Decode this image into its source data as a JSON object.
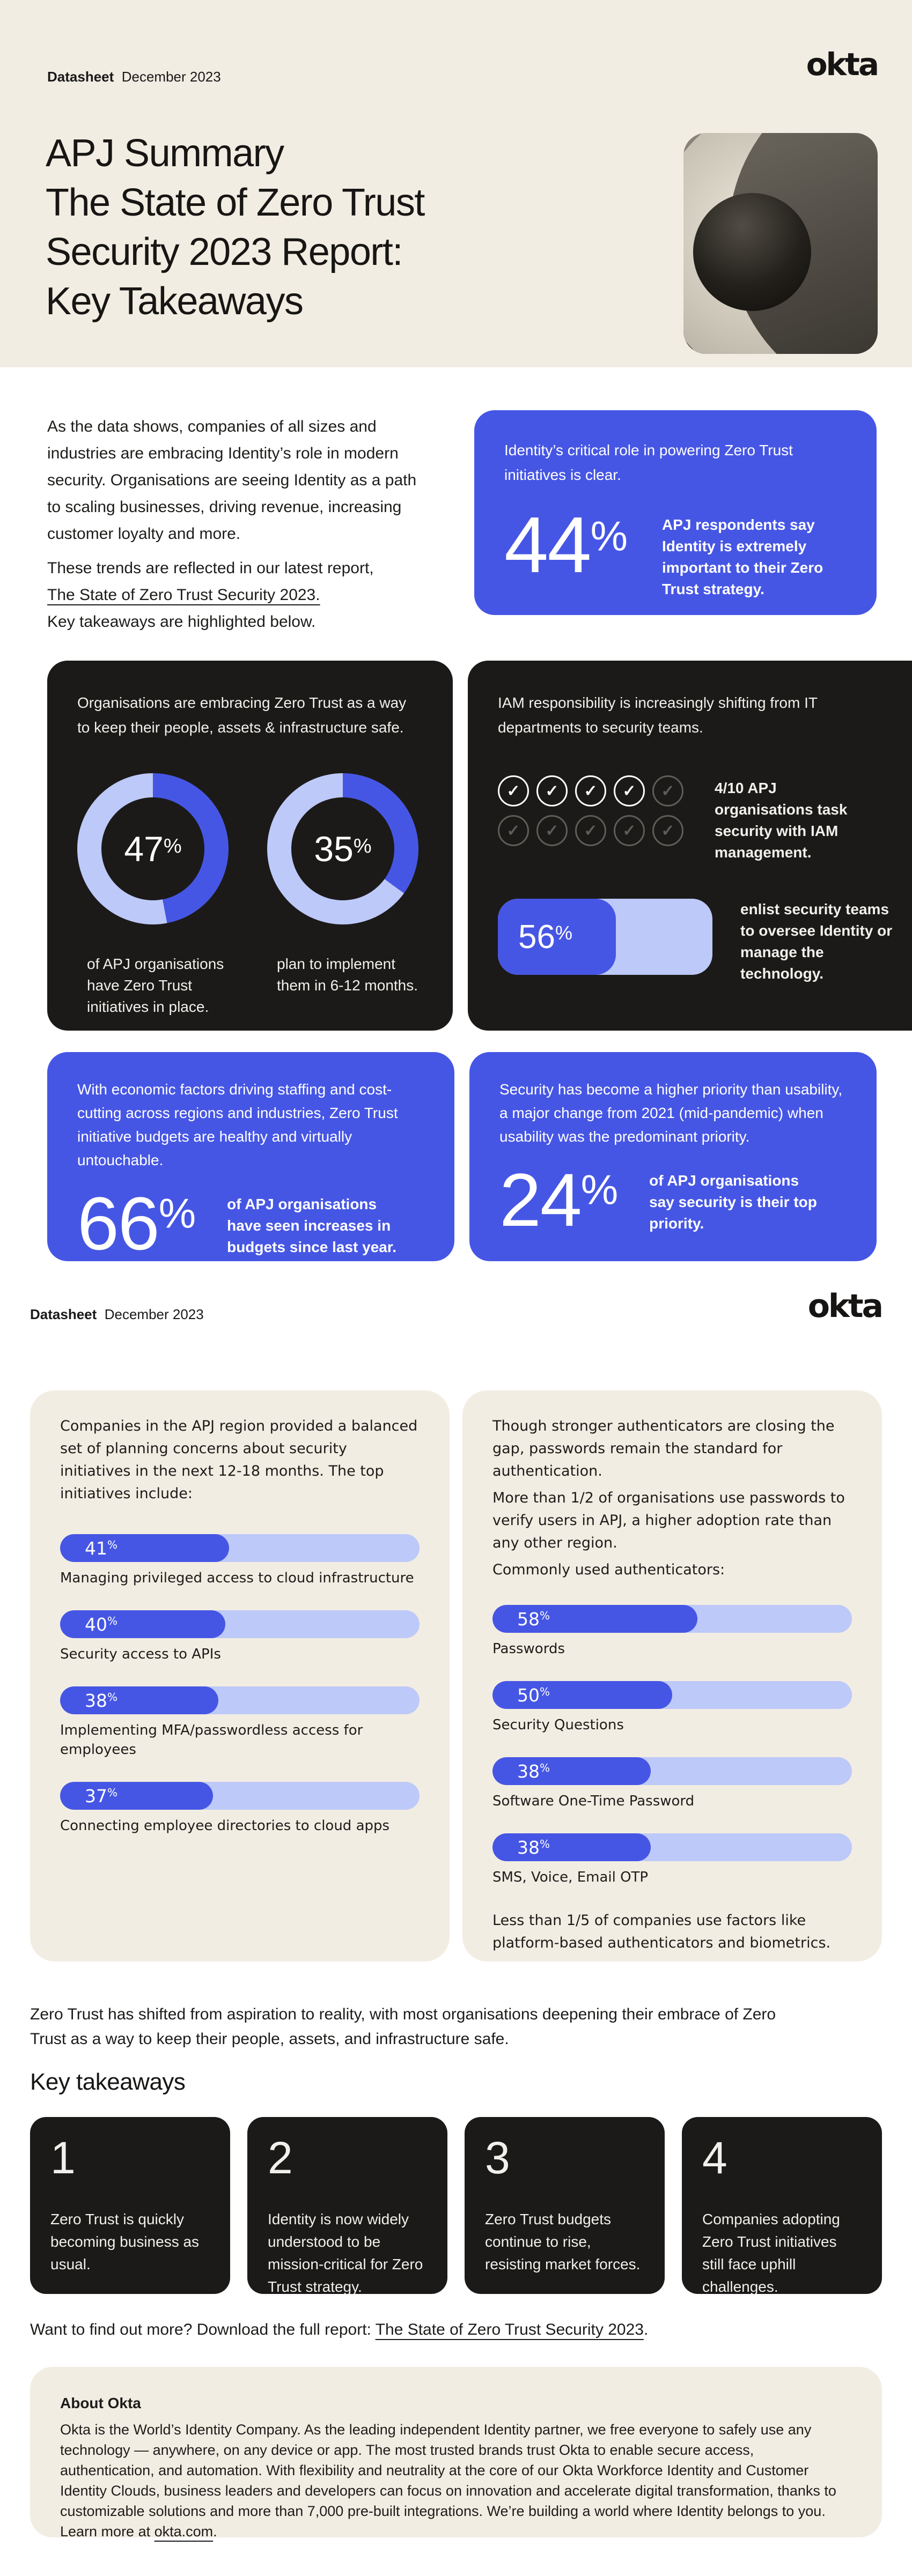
{
  "brand": {
    "logo_text": "okta"
  },
  "colors": {
    "cream": "#F2EDE2",
    "blue": "#4656E4",
    "blue_light": "#BDC9F9",
    "dark": "#1B1A18",
    "ink": "#191919"
  },
  "header": {
    "label": "Datasheet",
    "date": "December 2023"
  },
  "page1": {
    "title_lines": [
      "APJ Summary",
      "The State of Zero Trust",
      "Security 2023 Report:",
      "Key Takeaways"
    ],
    "intro": {
      "p1": "As the data shows, companies of all sizes and industries are embracing Identity’s role in modern security. Organisations are seeing Identity as a path to scaling businesses, driving revenue, increasing customer loyalty and more.",
      "p2_line1": "These trends are reflected in our latest report,",
      "p2_link": "The State of Zero Trust Security 2023.",
      "p3": "Key takeaways are highlighted below."
    },
    "stat44": {
      "lead": "Identity’s critical role in powering Zero Trust initiatives is clear.",
      "value": "44",
      "unit": "%",
      "caption": "APJ respondents say Identity is extremely important to their Zero Trust strategy."
    },
    "zt_box": {
      "lead": "Organisations are embracing Zero Trust as a way to keep their people, assets & infrastructure safe.",
      "donut1": {
        "value": 47,
        "display": "47",
        "unit": "%",
        "caption": "of APJ organisations have Zero Trust initiatives in place."
      },
      "donut2": {
        "value": 35,
        "display": "35",
        "unit": "%",
        "caption": "plan to implement them in 6-12 months."
      }
    },
    "iam_box": {
      "lead": "IAM responsibility is increasingly shifting from IT departments to security teams.",
      "checks": {
        "filled": 4,
        "total": 10,
        "caption": "4/10 APJ organisations task security with IAM management."
      },
      "bar": {
        "value": "56",
        "unit": "%",
        "fill_pct": 55,
        "caption": "enlist security teams to oversee Identity or manage the technology."
      }
    },
    "budget_box": {
      "lead": "With economic factors driving staffing and cost-cutting across regions and industries, Zero Trust initiative budgets are healthy and virtually untouchable.",
      "value": "66",
      "unit": "%",
      "caption": "of APJ organisations have seen increases in budgets since last year."
    },
    "priority_box": {
      "lead": "Security has become a higher priority than usability, a major change from 2021 (mid-pandemic) when usability was the predominant priority.",
      "value": "24",
      "unit": "%",
      "caption": "of APJ organisations say security is their top priority."
    }
  },
  "page2": {
    "initiatives_box": {
      "intro": "Companies in the APJ region provided a balanced set of planning concerns about security initiatives in the next 12-18 months. The top initiatives include:",
      "bars": [
        {
          "value": "41",
          "unit": "%",
          "fill_pct": 47,
          "caption": "Managing privileged access to cloud infrastructure"
        },
        {
          "value": "40",
          "unit": "%",
          "fill_pct": 46,
          "caption": "Security access to APIs"
        },
        {
          "value": "38",
          "unit": "%",
          "fill_pct": 44,
          "caption": "Implementing MFA/passwordless access for employees"
        },
        {
          "value": "37",
          "unit": "%",
          "fill_pct": 42.5,
          "caption": "Connecting employee directories to cloud apps"
        }
      ]
    },
    "auth_box": {
      "p1": "Though stronger authenticators are closing the gap, passwords remain the standard for authentication.",
      "p2": "More than 1/2 of organisations use passwords to verify users in APJ, a higher adoption rate than any other region.",
      "p3": "Commonly used authenticators:",
      "bars": [
        {
          "value": "58",
          "unit": "%",
          "fill_pct": 57,
          "caption": "Passwords"
        },
        {
          "value": "50",
          "unit": "%",
          "fill_pct": 50,
          "caption": "Security Questions"
        },
        {
          "value": "38",
          "unit": "%",
          "fill_pct": 44,
          "caption": "Software One-Time Password"
        },
        {
          "value": "38",
          "unit": "%",
          "fill_pct": 44,
          "caption": "SMS, Voice, Email OTP"
        }
      ],
      "footnote": "Less than 1/5 of companies use factors like platform-based authenticators and biometrics."
    },
    "summary": "Zero Trust has shifted from aspiration to reality, with most organisations deepening their embrace of Zero Trust as a way to keep their people, assets, and infrastructure safe.",
    "takeaways_title": "Key takeaways",
    "takeaways": [
      {
        "number": "1",
        "text": "Zero Trust is quickly becoming business as usual."
      },
      {
        "number": "2",
        "text": "Identity is now widely understood to be mission-critical for Zero Trust strategy."
      },
      {
        "number": "3",
        "text": "Zero Trust budgets continue to rise, resisting market forces."
      },
      {
        "number": "4",
        "text": "Companies adopting Zero Trust initiatives still face uphill challenges."
      }
    ],
    "more": {
      "before": "Want to find out more? Download the full report: ",
      "link": "The State of Zero Trust Security 2023",
      "after": "."
    },
    "about": {
      "title": "About Okta",
      "before": "Okta is the World’s Identity Company. As the leading independent Identity partner, we free everyone to safely use any technology — anywhere, on any device or app. The most trusted brands trust Okta to enable secure access, authentication, and automation. With flexibility and neutrality at the core of our Okta Workforce Identity and Customer Identity Clouds, business leaders and developers can focus on innovation and accelerate digital transformation, thanks to customizable solutions and more than 7,000 pre-built integrations. We’re building a world where Identity belongs to you. Learn more at ",
      "link": "okta.com",
      "after": "."
    }
  },
  "chart_data": [
    {
      "type": "pie",
      "title": "APJ organisations with Zero Trust initiatives in place",
      "categories": [
        "Have Zero Trust initiatives in place",
        "Other"
      ],
      "values": [
        47,
        53
      ]
    },
    {
      "type": "pie",
      "title": "APJ organisations planning to implement Zero Trust in 6-12 months",
      "categories": [
        "Plan to implement in 6-12 months",
        "Other"
      ],
      "values": [
        35,
        65
      ]
    },
    {
      "type": "bar",
      "title": "Enlist security teams to oversee Identity or manage the technology",
      "categories": [
        "Enlist security teams"
      ],
      "values": [
        56
      ],
      "xlabel": "",
      "ylabel": "%",
      "ylim": [
        0,
        100
      ]
    },
    {
      "type": "bar",
      "title": "Top security initiatives, next 12-18 months (APJ)",
      "categories": [
        "Managing privileged access to cloud infrastructure",
        "Security access to APIs",
        "Implementing MFA/passwordless access for employees",
        "Connecting employee directories to cloud apps"
      ],
      "values": [
        41,
        40,
        38,
        37
      ],
      "xlabel": "",
      "ylabel": "%",
      "ylim": [
        0,
        100
      ]
    },
    {
      "type": "bar",
      "title": "Commonly used authenticators (APJ)",
      "categories": [
        "Passwords",
        "Security Questions",
        "Software One-Time Password",
        "SMS, Voice, Email OTP"
      ],
      "values": [
        58,
        50,
        38,
        38
      ],
      "xlabel": "",
      "ylabel": "%",
      "ylim": [
        0,
        100
      ]
    }
  ]
}
